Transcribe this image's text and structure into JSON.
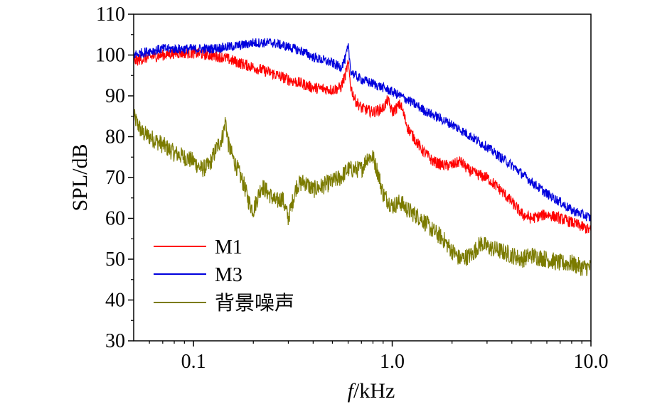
{
  "chart_data": {
    "type": "line",
    "title": "",
    "xlabel_var": "f",
    "xlabel_unit": "/kHz",
    "ylabel": "SPL/dB",
    "xscale": "log",
    "xlim": [
      0.05,
      10.0
    ],
    "ylim": [
      30,
      110
    ],
    "x_ticks": [
      0.1,
      1.0,
      10.0
    ],
    "x_tick_labels": [
      "0.1",
      "1.0",
      "10.0"
    ],
    "y_ticks": [
      30,
      40,
      50,
      60,
      70,
      80,
      90,
      100,
      110
    ],
    "y_tick_labels": [
      "30",
      "40",
      "50",
      "60",
      "70",
      "80",
      "90",
      "100",
      "110"
    ],
    "grid": false,
    "legend_position": "bottom-left",
    "series": [
      {
        "name": "M1",
        "color": "#ff0000",
        "x": [
          0.05,
          0.06,
          0.07,
          0.08,
          0.1,
          0.12,
          0.14,
          0.16,
          0.2,
          0.25,
          0.3,
          0.35,
          0.4,
          0.5,
          0.55,
          0.58,
          0.6,
          0.62,
          0.65,
          0.7,
          0.8,
          0.9,
          0.95,
          1.0,
          1.1,
          1.2,
          1.4,
          1.6,
          1.8,
          2.0,
          2.2,
          2.4,
          2.6,
          3.0,
          3.5,
          4.0,
          4.5,
          5.0,
          6.0,
          7.0,
          8.0,
          9.0,
          10.0
        ],
        "values": [
          98.5,
          99.5,
          100,
          100.5,
          100.5,
          100,
          99.5,
          98.5,
          97,
          95.5,
          94,
          93,
          92,
          91.5,
          92,
          95,
          98,
          92,
          89,
          87,
          86,
          87,
          89,
          86,
          88,
          82,
          77,
          74,
          73,
          73,
          74,
          72,
          71,
          70,
          67,
          64,
          61,
          60,
          61,
          60,
          59,
          58,
          57
        ]
      },
      {
        "name": "M3",
        "color": "#0000dd",
        "x": [
          0.05,
          0.06,
          0.07,
          0.08,
          0.1,
          0.12,
          0.15,
          0.18,
          0.2,
          0.25,
          0.3,
          0.35,
          0.4,
          0.5,
          0.55,
          0.58,
          0.6,
          0.62,
          0.65,
          0.7,
          0.8,
          0.9,
          1.0,
          1.2,
          1.5,
          2.0,
          2.5,
          3.0,
          3.5,
          4.0,
          5.0,
          6.0,
          7.0,
          8.0,
          9.0,
          10.0
        ],
        "values": [
          100,
          101,
          101.5,
          101.5,
          101.5,
          101.5,
          102,
          102.5,
          103,
          103,
          102,
          101,
          99.5,
          98,
          97,
          99,
          102,
          96,
          95,
          94,
          93,
          92,
          91,
          89,
          86,
          83,
          80,
          77.5,
          75,
          73,
          69,
          66,
          64,
          62,
          61,
          60
        ]
      },
      {
        "name": "背景噪声",
        "color": "#7b7b00",
        "x": [
          0.05,
          0.055,
          0.06,
          0.07,
          0.08,
          0.09,
          0.1,
          0.11,
          0.12,
          0.13,
          0.14,
          0.145,
          0.15,
          0.16,
          0.17,
          0.18,
          0.19,
          0.2,
          0.22,
          0.24,
          0.26,
          0.28,
          0.3,
          0.33,
          0.36,
          0.4,
          0.45,
          0.5,
          0.55,
          0.6,
          0.7,
          0.75,
          0.8,
          0.85,
          0.9,
          1.0,
          1.1,
          1.2,
          1.4,
          1.6,
          1.8,
          2.0,
          2.2,
          2.5,
          2.8,
          3.0,
          3.5,
          4.0,
          4.5,
          5.0,
          6.0,
          7.0,
          8.0,
          9.0,
          10.0
        ],
        "values": [
          85,
          81,
          80,
          78,
          76,
          75,
          74,
          72,
          73,
          77,
          80,
          84,
          78,
          74,
          71,
          68,
          64,
          62,
          68,
          66,
          64,
          65,
          60,
          68,
          69,
          67,
          68,
          69,
          70,
          72,
          72,
          75,
          75,
          71,
          66,
          63,
          64,
          62,
          60,
          57,
          55,
          52,
          50,
          51,
          54,
          53,
          52,
          51,
          50,
          51,
          50,
          49,
          49,
          48,
          48
        ]
      }
    ]
  }
}
